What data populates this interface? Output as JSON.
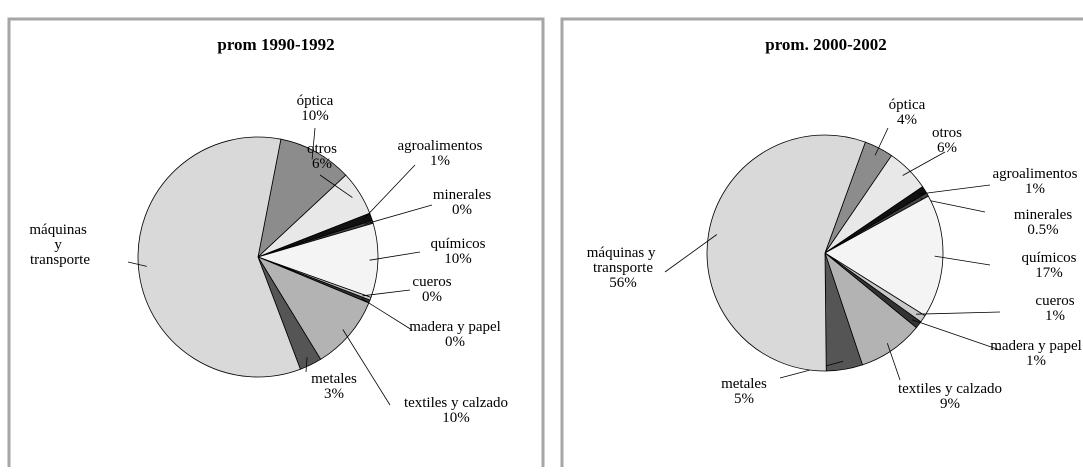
{
  "chart_data": [
    {
      "type": "pie",
      "title": "prom 1990-1992",
      "categories": [
        "óptica",
        "otros",
        "agroalimentos",
        "minerales",
        "químicos",
        "cueros",
        "madera y papel",
        "textiles y calzado",
        "metales",
        "máquinas y transporte"
      ],
      "values": [
        10,
        6,
        1,
        0.4,
        10,
        0.4,
        0.4,
        10,
        3,
        58.8
      ],
      "value_labels": [
        "10%",
        "6%",
        "1%",
        "0%",
        "10%",
        "0%",
        "0%",
        "10%",
        "3%",
        null
      ],
      "colors": [
        "#8c8c8c",
        "#e8e8e8",
        "#111111",
        "#444444",
        "#f4f4f4",
        "#c8c8c8",
        "#333333",
        "#b3b3b3",
        "#555555",
        "#d9d9d9"
      ]
    },
    {
      "type": "pie",
      "title": "prom. 2000-2002",
      "categories": [
        "óptica",
        "otros",
        "agroalimentos",
        "minerales",
        "químicos",
        "cueros",
        "madera y papel",
        "textiles y calzado",
        "metales",
        "máquinas y transporte"
      ],
      "values": [
        4,
        6,
        1,
        0.5,
        17,
        1,
        1,
        9,
        5,
        56
      ],
      "value_labels": [
        "4%",
        "6%",
        "1%",
        "0.5%",
        "17%",
        "1%",
        "1%",
        "9%",
        "5%",
        "56%"
      ],
      "colors": [
        "#8c8c8c",
        "#e8e8e8",
        "#111111",
        "#444444",
        "#f4f4f4",
        "#c8c8c8",
        "#333333",
        "#b3b3b3",
        "#555555",
        "#d9d9d9"
      ]
    }
  ]
}
